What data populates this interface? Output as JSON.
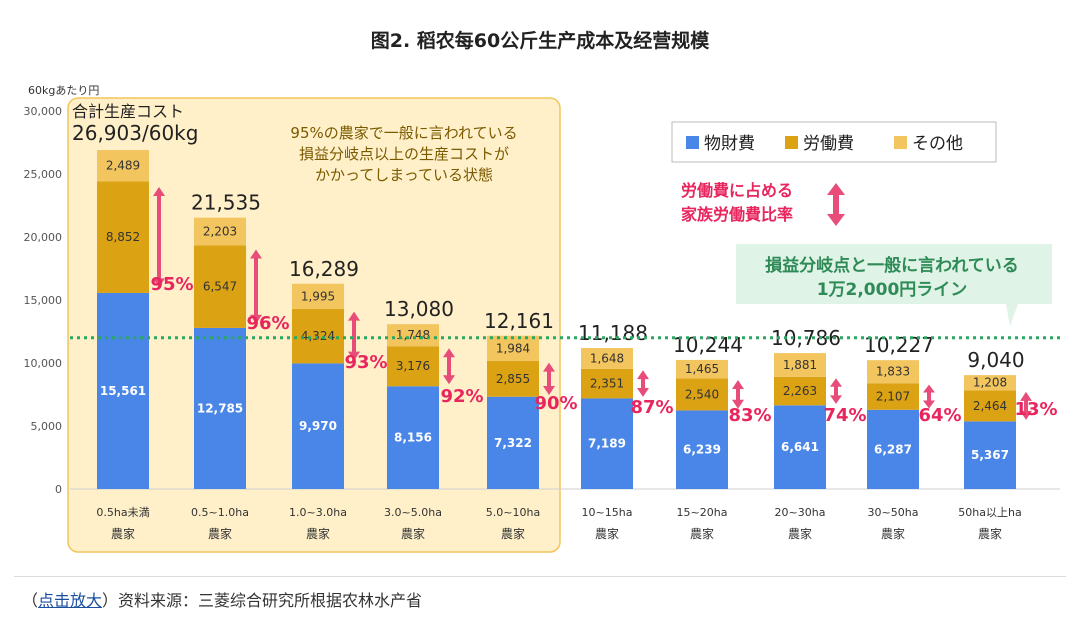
{
  "figure_title": "图2. 稻农每60公斤生产成本及经营规模",
  "footer": {
    "open_paren": "（",
    "link_text": "点击放大",
    "source_text": "）资料来源：三菱综合研究所根据农林水产省"
  },
  "colors": {
    "material": "#4a86e8",
    "labor": "#dba213",
    "other": "#f2c55e",
    "highlight_bg": "#fff0c9",
    "highlight_border": "#f2c55e",
    "pct": "#e8265e",
    "arrow": "#e84d7a",
    "breakeven_line": "#2aa862",
    "callout_bg": "#dff3e6"
  },
  "chart_data": {
    "type": "bar",
    "stacked": true,
    "y_unit_label": "60kgあたり円",
    "ylim": [
      0,
      30000
    ],
    "yticks": [
      "0",
      "5,000",
      "10,000",
      "15,000",
      "20,000",
      "25,000",
      "30,000"
    ],
    "ytick_values": [
      0,
      5000,
      10000,
      15000,
      20000,
      25000,
      30000
    ],
    "categories": [
      [
        "0.5ha未満",
        "農家"
      ],
      [
        "0.5~1.0ha",
        "農家"
      ],
      [
        "1.0~3.0ha",
        "農家"
      ],
      [
        "3.0~5.0ha",
        "農家"
      ],
      [
        "5.0~10ha",
        "農家"
      ],
      [
        "10~15ha",
        "農家"
      ],
      [
        "15~20ha",
        "農家"
      ],
      [
        "20~30ha",
        "農家"
      ],
      [
        "30~50ha",
        "農家"
      ],
      [
        "50ha以上ha",
        "農家"
      ]
    ],
    "series": [
      {
        "name": "物財費",
        "values": [
          15561,
          12785,
          9970,
          8156,
          7322,
          7189,
          6239,
          6641,
          6287,
          5367
        ],
        "labels": [
          "15,561",
          "12,785",
          "9,970",
          "8,156",
          "7,322",
          "7,189",
          "6,239",
          "6,641",
          "6,287",
          "5,367"
        ]
      },
      {
        "name": "労働費",
        "values": [
          8852,
          6547,
          4324,
          3176,
          2855,
          2351,
          2540,
          2263,
          2107,
          2464
        ],
        "labels": [
          "8,852",
          "6,547",
          "4,324",
          "3,176",
          "2,855",
          "2,351",
          "2,540",
          "2,263",
          "2,107",
          "2,464"
        ]
      },
      {
        "name": "その他",
        "values": [
          2489,
          2203,
          1995,
          1748,
          1984,
          1648,
          1465,
          1881,
          1833,
          1208
        ],
        "labels": [
          "2,489",
          "2,203",
          "1,995",
          "1,748",
          "1,984",
          "1,648",
          "1,465",
          "1,881",
          "1,833",
          "1,208"
        ]
      }
    ],
    "totals": [
      26903,
      21535,
      16289,
      13080,
      12161,
      11188,
      10244,
      10786,
      10227,
      9040
    ],
    "total_labels": [
      "26,903/60kg",
      "21,535",
      "16,289",
      "13,080",
      "12,161",
      "11,188",
      "10,244",
      "10,786",
      "10,227",
      "9,040"
    ],
    "first_total_prefix": "合計生産コスト",
    "family_labor_pct": [
      95,
      96,
      93,
      92,
      90,
      87,
      83,
      74,
      64,
      13
    ],
    "family_labor_pct_labels": [
      "95%",
      "96%",
      "93%",
      "92%",
      "90%",
      "87%",
      "83%",
      "74%",
      "64%",
      "13%"
    ],
    "breakeven_value": 12000,
    "highlight_count": 5,
    "highlight_note": [
      "95%の農家で一般に言われている",
      "損益分岐点以上の生産コストが",
      "かかってしまっている状態"
    ],
    "arrow_legend": [
      "労働費に占める",
      "家族労働費比率"
    ],
    "breakeven_callout": [
      "損益分岐点と一般に言われている",
      "1万2,000円ライン"
    ],
    "legend_position": "top-right"
  }
}
